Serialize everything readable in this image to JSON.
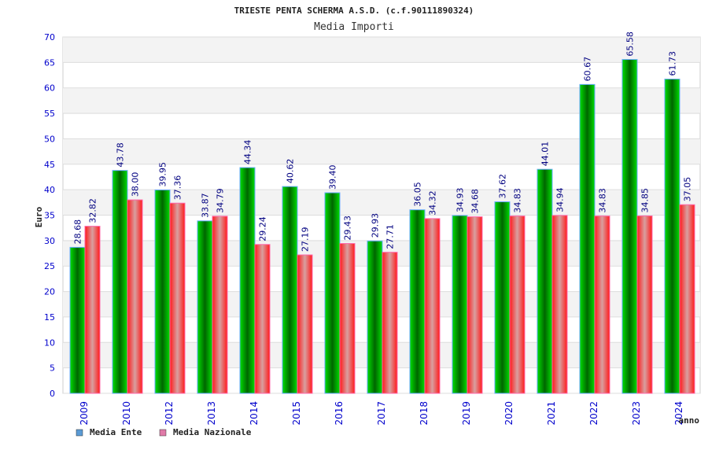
{
  "chart_data": {
    "type": "bar",
    "title": "TRIESTE PENTA SCHERMA A.S.D. (c.f.90111890324)",
    "subtitle": "Media Importi",
    "xlabel": "anno",
    "ylabel": "Euro",
    "ylim": [
      0,
      70
    ],
    "yticks": [
      0,
      5,
      10,
      15,
      20,
      25,
      30,
      35,
      40,
      45,
      50,
      55,
      60,
      65,
      70
    ],
    "grid": true,
    "legend_position": "bottom-left",
    "categories": [
      "2009",
      "2010",
      "2012",
      "2013",
      "2014",
      "2015",
      "2016",
      "2017",
      "2018",
      "2019",
      "2020",
      "2021",
      "2022",
      "2023",
      "2024"
    ],
    "series": [
      {
        "name": "Media Ente",
        "legend_color": "#5b9bd5",
        "values": [
          28.68,
          43.78,
          39.95,
          33.87,
          44.34,
          40.62,
          39.4,
          29.93,
          36.05,
          34.93,
          37.62,
          44.01,
          60.67,
          65.58,
          61.73
        ]
      },
      {
        "name": "Media Nazionale",
        "legend_color": "#e07aa8",
        "values": [
          32.82,
          38.0,
          37.36,
          34.79,
          29.24,
          27.19,
          29.43,
          27.71,
          34.32,
          34.68,
          34.83,
          34.94,
          34.83,
          34.85,
          37.05
        ]
      }
    ]
  }
}
